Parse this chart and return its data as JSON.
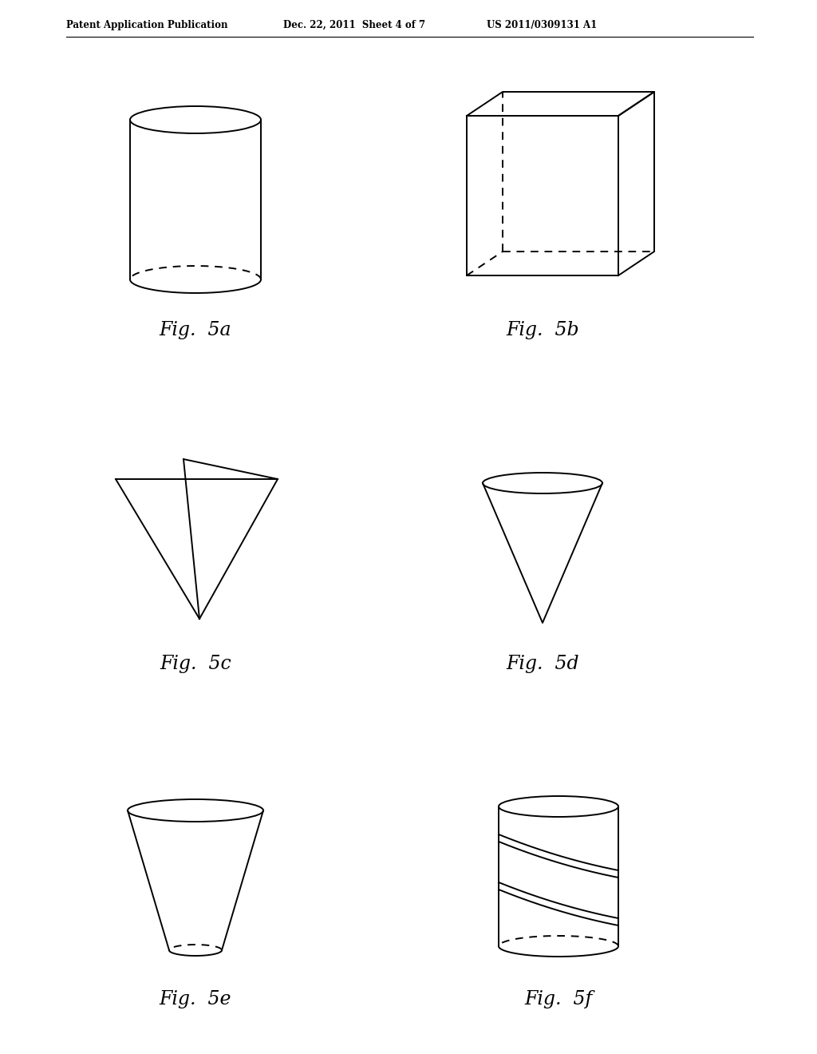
{
  "bg_color": "#ffffff",
  "line_color": "#000000",
  "header_left": "Patent Application Publication",
  "header_mid": "Dec. 22, 2011  Sheet 4 of 7",
  "header_right": "US 2011/0309131 A1",
  "fig_labels": [
    "Fig.  5a",
    "Fig.  5b",
    "Fig.  5c",
    "Fig.  5d",
    "Fig.  5e",
    "Fig.  5f"
  ],
  "lw": 1.4
}
